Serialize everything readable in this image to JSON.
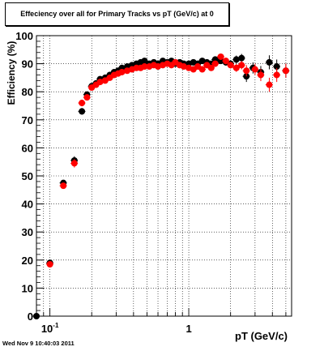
{
  "title": "Effeciency over all for Primary Tracks vs pT (GeV/c) at 0",
  "timestamp": "Wed Nov  9 10:40:03 2011",
  "chart_data": {
    "type": "scatter",
    "title": "Effeciency over all for Primary Tracks vs pT (GeV/c) at 0",
    "xlabel": "pT (GeV/c)",
    "ylabel": "Efficiency (%)",
    "xscale": "log",
    "xlim": [
      0.08,
      5.5
    ],
    "ylim": [
      0,
      100
    ],
    "y_ticks": [
      0,
      10,
      20,
      30,
      40,
      50,
      60,
      70,
      80,
      90,
      100
    ],
    "x_tick_labels": [
      {
        "value": 0.1,
        "label": "10-1"
      },
      {
        "value": 1,
        "label": "1"
      }
    ],
    "grid": true,
    "colors": {
      "series_a": "#000000",
      "series_b": "#ff0000"
    },
    "series": [
      {
        "points": [
          [
            0.08,
            0,
            0.004
          ],
          [
            0.1,
            19,
            0.007
          ],
          [
            0.125,
            47.5,
            0.008
          ],
          [
            0.15,
            55.5,
            1.5
          ],
          [
            0.17,
            73,
            1.2
          ],
          [
            0.185,
            79,
            1
          ],
          [
            0.2,
            82,
            1
          ],
          [
            0.215,
            83,
            0.9
          ],
          [
            0.23,
            84.5,
            0.8
          ],
          [
            0.25,
            85,
            0.8
          ],
          [
            0.27,
            86,
            0.7
          ],
          [
            0.29,
            87,
            0.7
          ],
          [
            0.31,
            87.5,
            0.6
          ],
          [
            0.33,
            88.5,
            0.6
          ],
          [
            0.36,
            89,
            0.6
          ],
          [
            0.39,
            89.5,
            0.6
          ],
          [
            0.42,
            90,
            0.6
          ],
          [
            0.45,
            90.5,
            0.6
          ],
          [
            0.48,
            91,
            0.6
          ],
          [
            0.52,
            90,
            0.6
          ],
          [
            0.56,
            90.5,
            0.6
          ],
          [
            0.6,
            90,
            0.6
          ],
          [
            0.65,
            91,
            0.6
          ],
          [
            0.7,
            90.5,
            0.6
          ],
          [
            0.75,
            91,
            0.6
          ],
          [
            0.8,
            90,
            0.6
          ],
          [
            0.86,
            90.5,
            0.7
          ],
          [
            0.92,
            90,
            0.7
          ],
          [
            1.0,
            90,
            0.8
          ],
          [
            1.08,
            90.5,
            0.8
          ],
          [
            1.16,
            90,
            0.8
          ],
          [
            1.25,
            91,
            0.9
          ],
          [
            1.35,
            90.5,
            0.9
          ],
          [
            1.45,
            90,
            1
          ],
          [
            1.55,
            91.5,
            1
          ],
          [
            1.7,
            91,
            1
          ],
          [
            1.85,
            90.5,
            1.2
          ],
          [
            2.0,
            90,
            1.2
          ],
          [
            2.2,
            91.5,
            1.4
          ],
          [
            2.4,
            92,
            1.5
          ],
          [
            2.6,
            85.5,
            2
          ],
          [
            2.9,
            88.5,
            2
          ],
          [
            3.3,
            87,
            2.2
          ],
          [
            3.8,
            90.5,
            2.5
          ],
          [
            4.3,
            89,
            2.5
          ],
          [
            5.0,
            87.5,
            2.5
          ]
        ]
      },
      {
        "points": [
          [
            0.1,
            18.5,
            0.007
          ],
          [
            0.125,
            46.5,
            0.008
          ],
          [
            0.15,
            54.5,
            1.5
          ],
          [
            0.17,
            76,
            1.2
          ],
          [
            0.185,
            78,
            1
          ],
          [
            0.2,
            81.5,
            1
          ],
          [
            0.215,
            82.5,
            0.9
          ],
          [
            0.23,
            83.5,
            0.8
          ],
          [
            0.25,
            84,
            0.8
          ],
          [
            0.27,
            85,
            0.7
          ],
          [
            0.29,
            86,
            0.7
          ],
          [
            0.31,
            86.5,
            0.6
          ],
          [
            0.33,
            87,
            0.6
          ],
          [
            0.36,
            87.5,
            0.6
          ],
          [
            0.39,
            88,
            0.6
          ],
          [
            0.42,
            88.5,
            0.6
          ],
          [
            0.45,
            88.5,
            0.6
          ],
          [
            0.48,
            89,
            0.6
          ],
          [
            0.52,
            89,
            0.6
          ],
          [
            0.56,
            89.5,
            0.6
          ],
          [
            0.6,
            89,
            0.6
          ],
          [
            0.65,
            89.5,
            0.6
          ],
          [
            0.7,
            90,
            0.6
          ],
          [
            0.75,
            89.5,
            0.6
          ],
          [
            0.8,
            90.5,
            0.6
          ],
          [
            0.86,
            89.5,
            0.7
          ],
          [
            0.92,
            89,
            0.7
          ],
          [
            1.0,
            88.5,
            0.8
          ],
          [
            1.08,
            88,
            0.8
          ],
          [
            1.16,
            89,
            0.8
          ],
          [
            1.25,
            88,
            0.9
          ],
          [
            1.35,
            89.5,
            0.9
          ],
          [
            1.45,
            88.5,
            1
          ],
          [
            1.55,
            90,
            1
          ],
          [
            1.7,
            92.5,
            1
          ],
          [
            1.85,
            91,
            1.2
          ],
          [
            2.0,
            89.5,
            1.2
          ],
          [
            2.2,
            88.5,
            1.4
          ],
          [
            2.4,
            89.5,
            1.5
          ],
          [
            2.6,
            87.5,
            2
          ],
          [
            3.0,
            88,
            2
          ],
          [
            3.3,
            86,
            2.2
          ],
          [
            3.8,
            82.5,
            2.5
          ],
          [
            4.3,
            86,
            2.5
          ],
          [
            5.0,
            87.5,
            2.5
          ]
        ]
      }
    ]
  }
}
